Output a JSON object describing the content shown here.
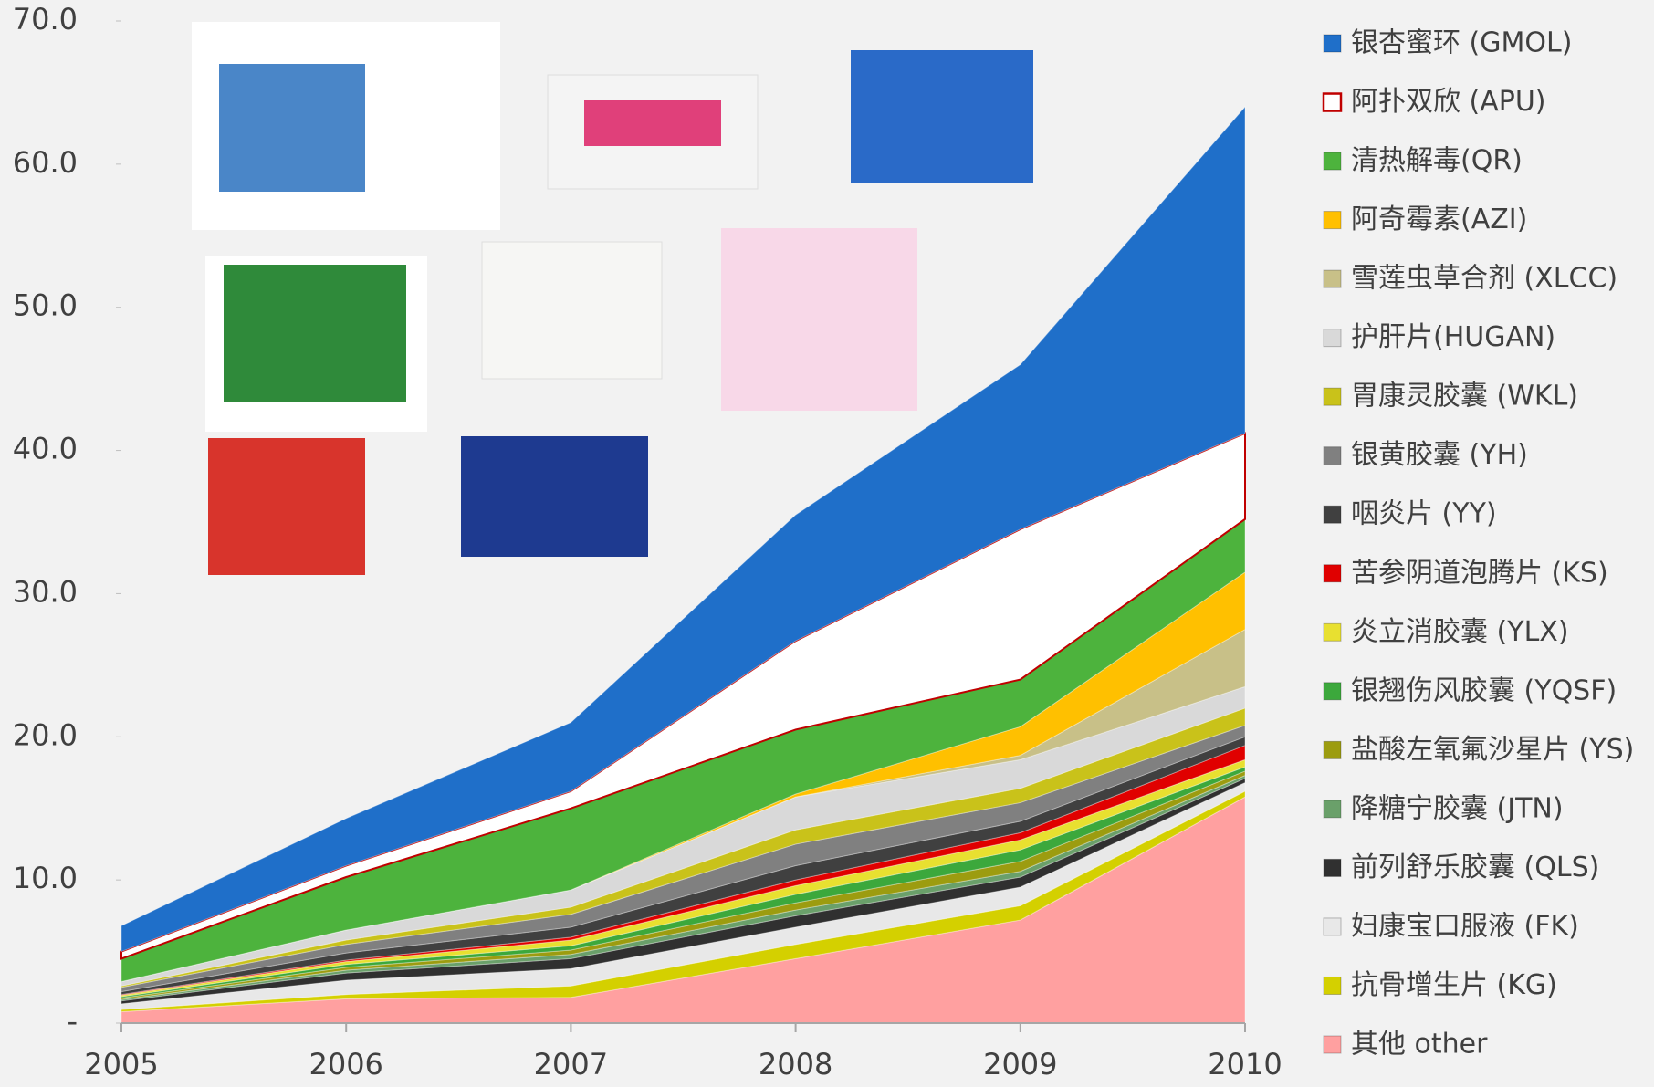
{
  "chart_data": {
    "type": "stacked-area",
    "categories": [
      "2005",
      "2006",
      "2007",
      "2008",
      "2009",
      "2010"
    ],
    "ylim": [
      0,
      70
    ],
    "yticks": [
      {
        "value": 0,
        "label": "-"
      },
      {
        "value": 10,
        "label": "10.0"
      },
      {
        "value": 20,
        "label": "20.0"
      },
      {
        "value": 30,
        "label": "30.0"
      },
      {
        "value": 40,
        "label": "40.0"
      },
      {
        "value": 50,
        "label": "50.0"
      },
      {
        "value": 60,
        "label": "60.0"
      },
      {
        "value": 70,
        "label": "70.0"
      }
    ],
    "legend": "right",
    "series": [
      {
        "name": "银杏蜜环 (GMOL)",
        "color": "#1f6fc9",
        "values": [
          1.8,
          3.3,
          4.8,
          8.8,
          11.5,
          22.8
        ]
      },
      {
        "name": "阿扑双欣 (APU)",
        "color": "#ffffff",
        "edge": "#c00000",
        "values": [
          0.5,
          0.8,
          1.2,
          6.2,
          10.5,
          6.0
        ]
      },
      {
        "name": "清热解毒(QR)",
        "color": "#4db33d",
        "values": [
          1.6,
          3.7,
          5.7,
          4.5,
          3.3,
          3.7
        ]
      },
      {
        "name": "阿奇霉素(AZI)",
        "color": "#ffc000",
        "values": [
          0,
          0,
          0,
          0.2,
          2.0,
          4.0
        ]
      },
      {
        "name": "雪莲虫草合剂 (XLCC)",
        "color": "#c8c088",
        "values": [
          0,
          0,
          0,
          0,
          0.3,
          4.0
        ]
      },
      {
        "name": "护肝片(HUGAN)",
        "color": "#d9d9d9",
        "values": [
          0.3,
          0.7,
          1.2,
          2.3,
          2.0,
          1.5
        ]
      },
      {
        "name": "胃康灵胶囊 (WKL)",
        "color": "#c9c21a",
        "values": [
          0.1,
          0.3,
          0.5,
          1.0,
          1.0,
          1.2
        ]
      },
      {
        "name": "银黄胶囊 (YH)",
        "color": "#808080",
        "values": [
          0.3,
          0.6,
          0.9,
          1.5,
          1.3,
          0.8
        ]
      },
      {
        "name": "咽炎片 (YY)",
        "color": "#404040",
        "values": [
          0.2,
          0.5,
          0.7,
          1.0,
          0.8,
          0.6
        ]
      },
      {
        "name": "苦参阴道泡腾片 (KS)",
        "color": "#e00000",
        "values": [
          0.05,
          0.1,
          0.2,
          0.4,
          0.5,
          1.0
        ]
      },
      {
        "name": "炎立消胶囊 (YLX)",
        "color": "#e8e030",
        "values": [
          0.1,
          0.2,
          0.4,
          0.6,
          0.7,
          0.5
        ]
      },
      {
        "name": "银翘伤风胶囊 (YQSF)",
        "color": "#3ca83c",
        "values": [
          0.1,
          0.2,
          0.3,
          0.6,
          0.8,
          0.3
        ]
      },
      {
        "name": "盐酸左氧氟沙星片 (YS)",
        "color": "#9c9c10",
        "values": [
          0.1,
          0.2,
          0.3,
          0.5,
          0.7,
          0.3
        ]
      },
      {
        "name": "降糖宁胶囊 (JTN)",
        "color": "#6aa06a",
        "values": [
          0.1,
          0.2,
          0.3,
          0.4,
          0.4,
          0.2
        ]
      },
      {
        "name": "前列舒乐胶囊 (QLS)",
        "color": "#303030",
        "values": [
          0.2,
          0.5,
          0.7,
          0.8,
          0.7,
          0.3
        ]
      },
      {
        "name": "妇康宝口服液 (FK)",
        "color": "#e8e8e8",
        "values": [
          0.4,
          1.0,
          1.2,
          1.2,
          1.3,
          0.6
        ]
      },
      {
        "name": "抗骨增生片 (KG)",
        "color": "#d4d000",
        "values": [
          0.15,
          0.3,
          0.8,
          1.0,
          1.0,
          0.4
        ]
      },
      {
        "name": "其他 other",
        "color": "#ffa0a0",
        "values": [
          0.8,
          1.7,
          1.8,
          4.5,
          7.2,
          15.8
        ]
      }
    ]
  }
}
